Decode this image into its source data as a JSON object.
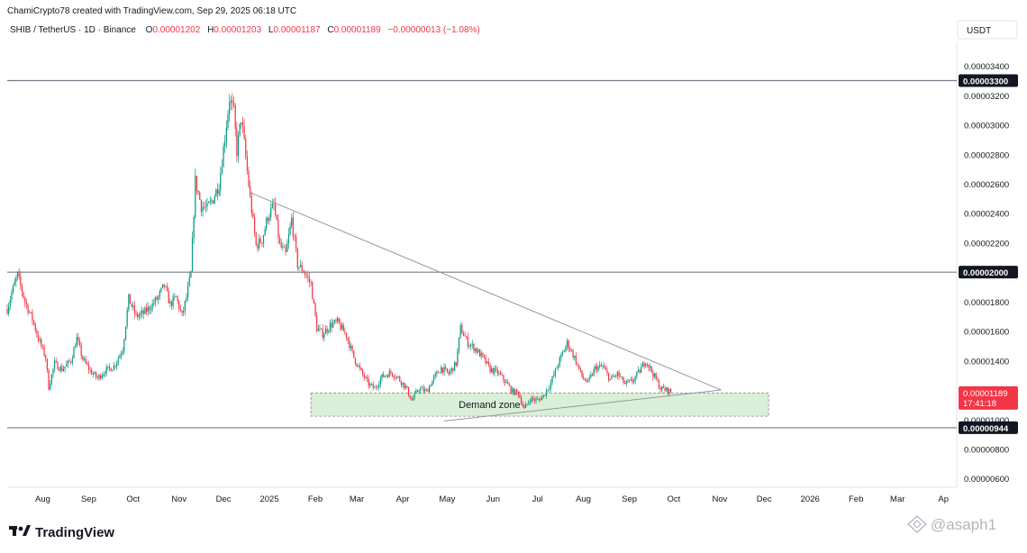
{
  "header": {
    "credit": "ChamiCrypto78 created with TradingView.com, Sep 29, 2025 06:18 UTC",
    "symbol_line": "SHIB / TetherUS · 1D · Binance",
    "ohlc": [
      {
        "label": "O",
        "value": "0.00001202"
      },
      {
        "label": "H",
        "value": "0.00001203"
      },
      {
        "label": "L",
        "value": "0.00001187"
      },
      {
        "label": "C",
        "value": "0.00001189"
      }
    ],
    "change": "−0.00000013 (−1.08%)"
  },
  "currency_button": "USDT",
  "footer": {
    "logo_text": "TradingView",
    "watermark": "@asaph1"
  },
  "colors": {
    "up": "#089981",
    "down": "#f23645",
    "level_line": "#787b86",
    "trendline": "#9598a1",
    "demand_fill": "#d4ecd0",
    "demand_border": "#8a8a8a",
    "label_dark": "#131722",
    "current_label": "#f23645"
  },
  "chart_data": {
    "type": "candlestick",
    "symbol": "SHIB / TetherUS",
    "interval": "1D",
    "exchange": "Binance",
    "y_axis": {
      "min": 5.4e-06,
      "max": 3.56e-05,
      "ticks": [
        "0.00000600",
        "0.00000800",
        "0.00001000",
        "0.00001200",
        "0.00001400",
        "0.00001600",
        "0.00001800",
        "0.00002000",
        "0.00002200",
        "0.00002400",
        "0.00002600",
        "0.00002800",
        "0.00003000",
        "0.00003200",
        "0.00003400"
      ],
      "tick_values": [
        6e-06,
        8e-06,
        1e-05,
        1.2e-05,
        1.4e-05,
        1.6e-05,
        1.8e-05,
        2e-05,
        2.2e-05,
        2.4e-05,
        2.6e-05,
        2.8e-05,
        3e-05,
        3.2e-05,
        3.4e-05
      ]
    },
    "x_axis": {
      "start": "2024-07-08",
      "end": "2026-04-10",
      "labels": [
        {
          "text": "Aug",
          "date": "2024-08-01"
        },
        {
          "text": "Sep",
          "date": "2024-09-01"
        },
        {
          "text": "Oct",
          "date": "2024-10-01"
        },
        {
          "text": "Nov",
          "date": "2024-11-01"
        },
        {
          "text": "Dec",
          "date": "2024-12-01"
        },
        {
          "text": "2025",
          "date": "2025-01-01"
        },
        {
          "text": "Feb",
          "date": "2025-02-01"
        },
        {
          "text": "Mar",
          "date": "2025-03-01"
        },
        {
          "text": "Apr",
          "date": "2025-04-01"
        },
        {
          "text": "May",
          "date": "2025-05-01"
        },
        {
          "text": "Jun",
          "date": "2025-06-01"
        },
        {
          "text": "Jul",
          "date": "2025-07-01"
        },
        {
          "text": "Aug",
          "date": "2025-08-01"
        },
        {
          "text": "Sep",
          "date": "2025-09-01"
        },
        {
          "text": "Oct",
          "date": "2025-10-01"
        },
        {
          "text": "Nov",
          "date": "2025-11-01"
        },
        {
          "text": "Dec",
          "date": "2025-12-01"
        },
        {
          "text": "2026",
          "date": "2026-01-01"
        },
        {
          "text": "Feb",
          "date": "2026-02-01"
        },
        {
          "text": "Mar",
          "date": "2026-03-01"
        },
        {
          "text": "Ap",
          "date": "2026-04-01"
        }
      ]
    },
    "price_path": [
      [
        "2024-07-08",
        1.75e-05
      ],
      [
        "2024-07-11",
        1.86e-05
      ],
      [
        "2024-07-15",
        1.98e-05
      ],
      [
        "2024-07-20",
        1.8e-05
      ],
      [
        "2024-07-25",
        1.68e-05
      ],
      [
        "2024-07-29",
        1.55e-05
      ],
      [
        "2024-08-03",
        1.42e-05
      ],
      [
        "2024-08-05",
        1.22e-05
      ],
      [
        "2024-08-09",
        1.38e-05
      ],
      [
        "2024-08-14",
        1.34e-05
      ],
      [
        "2024-08-20",
        1.4e-05
      ],
      [
        "2024-08-24",
        1.55e-05
      ],
      [
        "2024-08-28",
        1.41e-05
      ],
      [
        "2024-09-02",
        1.33e-05
      ],
      [
        "2024-09-07",
        1.28e-05
      ],
      [
        "2024-09-12",
        1.33e-05
      ],
      [
        "2024-09-18",
        1.36e-05
      ],
      [
        "2024-09-24",
        1.48e-05
      ],
      [
        "2024-09-28",
        1.82e-05
      ],
      [
        "2024-10-03",
        1.7e-05
      ],
      [
        "2024-10-08",
        1.72e-05
      ],
      [
        "2024-10-14",
        1.78e-05
      ],
      [
        "2024-10-18",
        1.83e-05
      ],
      [
        "2024-10-22",
        1.91e-05
      ],
      [
        "2024-10-26",
        1.78e-05
      ],
      [
        "2024-10-30",
        1.83e-05
      ],
      [
        "2024-11-03",
        1.7e-05
      ],
      [
        "2024-11-06",
        1.83e-05
      ],
      [
        "2024-11-09",
        1.99e-05
      ],
      [
        "2024-11-12",
        2.62e-05
      ],
      [
        "2024-11-16",
        2.45e-05
      ],
      [
        "2024-11-20",
        2.43e-05
      ],
      [
        "2024-11-24",
        2.5e-05
      ],
      [
        "2024-11-28",
        2.6e-05
      ],
      [
        "2024-12-02",
        2.92e-05
      ],
      [
        "2024-12-05",
        3.18e-05
      ],
      [
        "2024-12-08",
        3.08e-05
      ],
      [
        "2024-12-10",
        2.82e-05
      ],
      [
        "2024-12-13",
        3.05e-05
      ],
      [
        "2024-12-16",
        2.78e-05
      ],
      [
        "2024-12-19",
        2.5e-05
      ],
      [
        "2024-12-23",
        2.18e-05
      ],
      [
        "2024-12-27",
        2.22e-05
      ],
      [
        "2024-12-31",
        2.38e-05
      ],
      [
        "2025-01-04",
        2.45e-05
      ],
      [
        "2025-01-08",
        2.18e-05
      ],
      [
        "2025-01-12",
        2.12e-05
      ],
      [
        "2025-01-16",
        2.36e-05
      ],
      [
        "2025-01-20",
        2.05e-05
      ],
      [
        "2025-01-24",
        2.01e-05
      ],
      [
        "2025-01-29",
        1.92e-05
      ],
      [
        "2025-02-02",
        1.62e-05
      ],
      [
        "2025-02-06",
        1.58e-05
      ],
      [
        "2025-02-11",
        1.64e-05
      ],
      [
        "2025-02-16",
        1.66e-05
      ],
      [
        "2025-02-22",
        1.57e-05
      ],
      [
        "2025-02-27",
        1.42e-05
      ],
      [
        "2025-03-04",
        1.32e-05
      ],
      [
        "2025-03-09",
        1.24e-05
      ],
      [
        "2025-03-13",
        1.21e-05
      ],
      [
        "2025-03-18",
        1.29e-05
      ],
      [
        "2025-03-24",
        1.32e-05
      ],
      [
        "2025-03-29",
        1.28e-05
      ],
      [
        "2025-04-03",
        1.22e-05
      ],
      [
        "2025-04-07",
        1.13e-05
      ],
      [
        "2025-04-12",
        1.21e-05
      ],
      [
        "2025-04-17",
        1.19e-05
      ],
      [
        "2025-04-22",
        1.28e-05
      ],
      [
        "2025-04-27",
        1.35e-05
      ],
      [
        "2025-05-02",
        1.31e-05
      ],
      [
        "2025-05-07",
        1.38e-05
      ],
      [
        "2025-05-10",
        1.62e-05
      ],
      [
        "2025-05-15",
        1.52e-05
      ],
      [
        "2025-05-20",
        1.48e-05
      ],
      [
        "2025-05-25",
        1.42e-05
      ],
      [
        "2025-05-30",
        1.34e-05
      ],
      [
        "2025-06-04",
        1.32e-05
      ],
      [
        "2025-06-09",
        1.26e-05
      ],
      [
        "2025-06-14",
        1.19e-05
      ],
      [
        "2025-06-18",
        1.18e-05
      ],
      [
        "2025-06-22",
        1.07e-05
      ],
      [
        "2025-06-26",
        1.14e-05
      ],
      [
        "2025-07-01",
        1.13e-05
      ],
      [
        "2025-07-05",
        1.16e-05
      ],
      [
        "2025-07-10",
        1.25e-05
      ],
      [
        "2025-07-15",
        1.38e-05
      ],
      [
        "2025-07-21",
        1.52e-05
      ],
      [
        "2025-07-26",
        1.42e-05
      ],
      [
        "2025-07-31",
        1.29e-05
      ],
      [
        "2025-08-04",
        1.25e-05
      ],
      [
        "2025-08-09",
        1.35e-05
      ],
      [
        "2025-08-14",
        1.36e-05
      ],
      [
        "2025-08-19",
        1.27e-05
      ],
      [
        "2025-08-24",
        1.31e-05
      ],
      [
        "2025-08-29",
        1.24e-05
      ],
      [
        "2025-09-03",
        1.26e-05
      ],
      [
        "2025-09-08",
        1.33e-05
      ],
      [
        "2025-09-12",
        1.4e-05
      ],
      [
        "2025-09-17",
        1.31e-05
      ],
      [
        "2025-09-22",
        1.21e-05
      ],
      [
        "2025-09-26",
        1.2e-05
      ],
      [
        "2025-09-29",
        1.19e-05
      ]
    ],
    "horizontal_levels": [
      {
        "value": 3.3e-05,
        "label": "0.00003300"
      },
      {
        "value": 2e-05,
        "label": "0.00002000"
      },
      {
        "value": 9.44e-06,
        "label": "0.00000944"
      }
    ],
    "current_price": {
      "value": 1.189e-05,
      "label": "0.00001189",
      "countdown": "17:41:18"
    },
    "trendlines": [
      {
        "name": "descending-resistance",
        "start": [
          "2024-12-19",
          2.54e-05
        ],
        "end": [
          "2025-11-02",
          1.2e-05
        ]
      },
      {
        "name": "ascending-support",
        "start": [
          "2025-04-29",
          9.9e-06
        ],
        "end": [
          "2025-11-02",
          1.2e-05
        ]
      }
    ],
    "zones": [
      {
        "label": "Demand zone",
        "x_start": "2025-01-29",
        "x_end": "2025-12-04",
        "y_low": 1.022e-05,
        "y_high": 1.18e-05
      }
    ]
  }
}
